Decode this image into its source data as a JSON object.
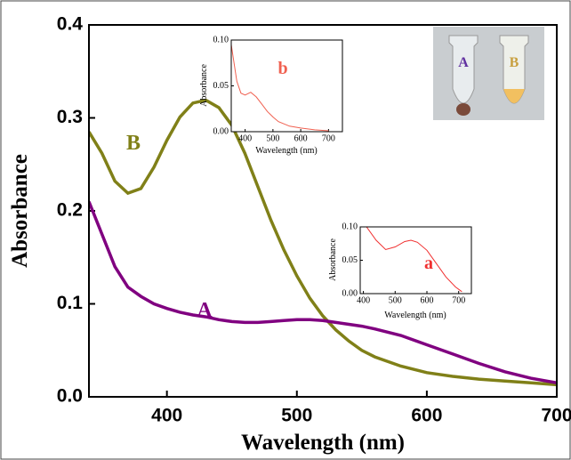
{
  "chart_data": [
    {
      "type": "line",
      "xlabel": "Wavelength (nm)",
      "ylabel": "Absorbance",
      "x": [
        340,
        350,
        360,
        370,
        380,
        390,
        400,
        410,
        420,
        430,
        440,
        450,
        460,
        470,
        480,
        490,
        500,
        510,
        520,
        530,
        540,
        550,
        560,
        580,
        600,
        620,
        640,
        660,
        680,
        700
      ],
      "series": [
        {
          "name": "B",
          "color": "#808018",
          "values": [
            0.285,
            0.262,
            0.232,
            0.219,
            0.224,
            0.247,
            0.276,
            0.301,
            0.316,
            0.319,
            0.311,
            0.292,
            0.262,
            0.226,
            0.19,
            0.158,
            0.13,
            0.106,
            0.087,
            0.072,
            0.06,
            0.05,
            0.043,
            0.033,
            0.026,
            0.022,
            0.019,
            0.017,
            0.015,
            0.013
          ]
        },
        {
          "name": "A",
          "color": "#800080",
          "values": [
            0.21,
            0.175,
            0.14,
            0.118,
            0.108,
            0.1,
            0.095,
            0.091,
            0.088,
            0.086,
            0.083,
            0.081,
            0.08,
            0.08,
            0.081,
            0.082,
            0.083,
            0.083,
            0.082,
            0.08,
            0.078,
            0.076,
            0.073,
            0.066,
            0.056,
            0.046,
            0.036,
            0.027,
            0.02,
            0.015
          ]
        }
      ],
      "xlim": [
        340,
        700
      ],
      "xticks": [
        400,
        500,
        600,
        700
      ],
      "ylim": [
        0,
        0.4
      ],
      "yticks": [
        {
          "value": 0,
          "label": "0.0"
        },
        0.1,
        0.2,
        0.3,
        0.4
      ]
    },
    {
      "type": "line",
      "xlabel": "Wavelength (nm)",
      "ylabel": "Absorbance",
      "x": [
        350,
        370,
        385,
        400,
        420,
        440,
        460,
        480,
        500,
        520,
        560,
        600,
        650,
        700
      ],
      "series": [
        {
          "name": "b",
          "color": "#f06050",
          "values": [
            0.095,
            0.055,
            0.042,
            0.04,
            0.043,
            0.038,
            0.03,
            0.022,
            0.016,
            0.011,
            0.006,
            0.004,
            0.002,
            0.001
          ]
        }
      ],
      "xlim": [
        350,
        750
      ],
      "xticks": [
        400,
        500,
        600,
        700
      ],
      "ylim": [
        0,
        0.1
      ],
      "yticks": [
        {
          "value": 0,
          "label": "0.00"
        },
        {
          "value": 0.05,
          "label": "0.05"
        },
        {
          "value": 0.1,
          "label": "0.10"
        }
      ]
    },
    {
      "type": "line",
      "xlabel": "Wavelength (nm)",
      "ylabel": "Absorbance",
      "x": [
        410,
        440,
        470,
        500,
        530,
        550,
        570,
        600,
        630,
        660,
        690,
        710
      ],
      "series": [
        {
          "name": "a",
          "color": "#f03030",
          "values": [
            0.1,
            0.08,
            0.066,
            0.07,
            0.078,
            0.08,
            0.077,
            0.065,
            0.045,
            0.025,
            0.01,
            0.003
          ]
        }
      ],
      "xlim": [
        390,
        740
      ],
      "xticks": [
        400,
        500,
        600,
        700
      ],
      "ylim": [
        0,
        0.1
      ],
      "yticks": [
        {
          "value": 0,
          "label": "0.00"
        },
        {
          "value": 0.05,
          "label": "0.05"
        },
        {
          "value": 0.1,
          "label": "0.10"
        }
      ]
    }
  ],
  "photo": {
    "labels": [
      "A",
      "B"
    ]
  }
}
